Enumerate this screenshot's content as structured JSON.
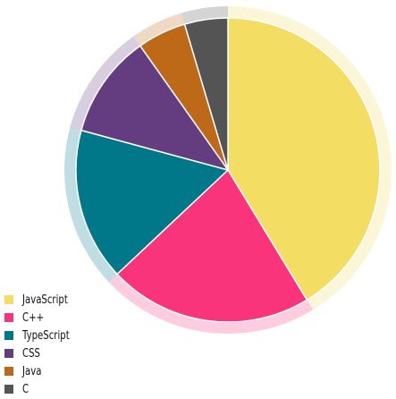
{
  "chart_data": {
    "type": "pie",
    "title": "",
    "start": "top",
    "direction": "clockwise",
    "legend_position": "bottom-left",
    "categories": [
      "JavaScript",
      "C++",
      "TypeScript",
      "CSS",
      "Java",
      "C"
    ],
    "values": [
      41.3,
      21.7,
      16.2,
      11.0,
      5.2,
      4.6
    ],
    "colors": [
      "#f3dd62",
      "#f9347a",
      "#00788a",
      "#633d80",
      "#bd6917",
      "#545454"
    ]
  }
}
